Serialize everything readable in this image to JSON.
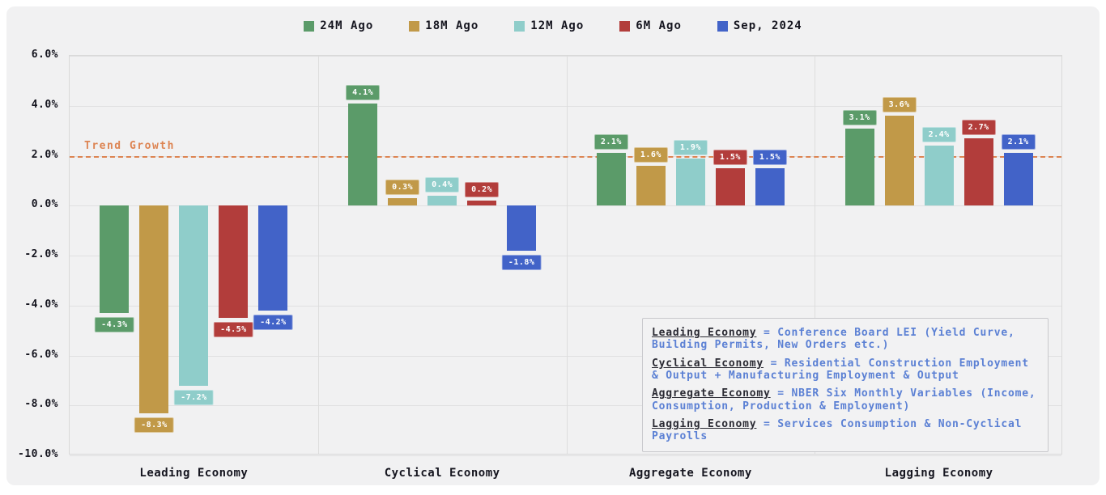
{
  "colors": {
    "card_background": "#f1f1f2",
    "grid": "#e0e0e1",
    "text": "#15151f",
    "trend": "#dd8452",
    "definition_blue": "#5b80d4"
  },
  "y_axis": {
    "tick_values": [
      6,
      4,
      2,
      0,
      -2,
      -4,
      -6,
      -8,
      -10
    ],
    "tick_labels": [
      "6.0%",
      "4.0%",
      "2.0%",
      "0.0%",
      "-2.0%",
      "-4.0%",
      "-6.0%",
      "-8.0%",
      "-10.0%"
    ]
  },
  "chart_data": {
    "type": "bar",
    "categories": [
      "Leading Economy",
      "Cyclical Economy",
      "Aggregate Economy",
      "Lagging Economy"
    ],
    "series": [
      {
        "name": "24M Ago",
        "color": "#5b9b69",
        "values": [
          -4.3,
          4.1,
          2.1,
          3.1
        ]
      },
      {
        "name": "18M Ago",
        "color": "#c19948",
        "values": [
          -8.3,
          0.3,
          1.6,
          3.6
        ]
      },
      {
        "name": "12M Ago",
        "color": "#8fcdca",
        "values": [
          -7.2,
          0.4,
          1.9,
          2.4
        ]
      },
      {
        "name": "6M Ago",
        "color": "#b23d3b",
        "values": [
          -4.5,
          0.2,
          1.5,
          2.7
        ]
      },
      {
        "name": "Sep, 2024",
        "color": "#4263c8",
        "values": [
          -4.2,
          -1.8,
          1.5,
          2.1
        ]
      }
    ],
    "ylim": [
      -10,
      6
    ],
    "grid": true,
    "legend_position": "top",
    "bar_label_format": "{value}%",
    "annotation_line": {
      "label": "Trend Growth",
      "y": 2.0
    }
  },
  "annotations": {
    "definitions": [
      {
        "term": "Leading Economy",
        "definition": "= Conference Board LEI (Yield Curve, Building Permits, New Orders etc.)"
      },
      {
        "term": "Cyclical Economy",
        "definition": "= Residential Construction Employment & Output + Manufacturing Employment & Output"
      },
      {
        "term": "Aggregate Economy",
        "definition": "= NBER Six Monthly Variables (Income, Consumption, Production & Employment)"
      },
      {
        "term": "Lagging Economy",
        "definition": "= Services Consumption & Non-Cyclical Payrolls"
      }
    ]
  }
}
